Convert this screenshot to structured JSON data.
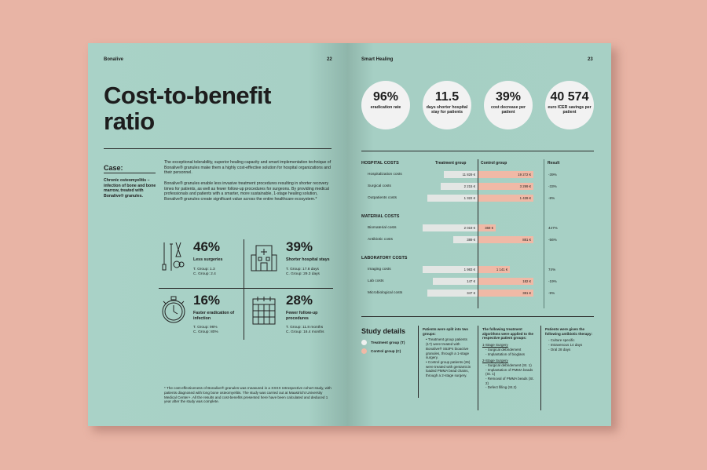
{
  "left_page": {
    "brand": "Bonalive",
    "page_num": "22",
    "title_line1": "Cost-to-benefit",
    "title_line2": "ratio",
    "case_label": "Case:",
    "side_text": "Chronic osteomyelitis – infection of bone and bone marrow, treated with Bonalive® granules.",
    "para1": "The exceptional tolerability, superior healing capacity and smart implementation technique of Bonalive® granules make them a highly cost-effective solution for hospital organizations and their personnel.",
    "para2": "Bonalive® granules enable less invasive treatment procedures resulting in shorter recovery times for patients, as well as fewer follow-up procedures for surgeons. By providing medical professionals and patients with a smarter, more sustainable, 1-stage healing solution, Bonalive® granules create significant value across the entire healthcare ecosystem.*",
    "stats": [
      {
        "icon": "surgical-tools-icon",
        "pct": "46%",
        "label": "Less surgeries",
        "t": "T. Group: 1.3",
        "c": "C. Group: 2.4"
      },
      {
        "icon": "hospital-icon",
        "pct": "39%",
        "label": "Shorter hospital stays",
        "t": "T. Group: 17.8 days",
        "c": "C. Group: 29.3 days"
      },
      {
        "icon": "stopwatch-icon",
        "pct": "16%",
        "label": "Faster eradication of infection",
        "t": "T. Group: 96%",
        "c": "C. Group: 80%"
      },
      {
        "icon": "calendar-icon",
        "pct": "28%",
        "label": "Fewer follow-up procedures",
        "t": "T. Group: 11.8 months",
        "c": "C. Group: 16.4 months"
      }
    ],
    "footnote": "*  The cost-effectiveness of Bonalive® granules was measured in a XXXX retrospective cohort study, with patients diagnosed with long bone osteomyelitis. The study was carried out at Maastricht University Medical Center+. All the results and cost-benefits presented here have been calculated and deduced 1 year after the study was complete."
  },
  "right_page": {
    "section": "Smart Healing",
    "page_num": "23",
    "kpis": [
      {
        "value": "96%",
        "label": "eradication rate"
      },
      {
        "value": "11.5",
        "label": "days shorter hospital stay for patients"
      },
      {
        "value": "39%",
        "label": "cost decrease per patient"
      },
      {
        "value": "40 574",
        "label": "euro ICER savings per patient"
      }
    ],
    "table_headers": {
      "treatment": "Treatment group",
      "control": "Control group",
      "result": "Result"
    },
    "groups": [
      {
        "name": "HOSPITAL COSTS",
        "rows": [
          {
            "label": "Hospitalization costs",
            "t": "11 829 €",
            "c": "19 272 €",
            "r": "-39%"
          },
          {
            "label": "Surgical costs",
            "t": "2 215 €",
            "c": "3 299 €",
            "r": "-33%"
          },
          {
            "label": "Outpatients costs",
            "t": "1 322 €",
            "c": "1 439 €",
            "r": "-8%"
          }
        ]
      },
      {
        "name": "MATERIAL COSTS",
        "rows": [
          {
            "label": "Biomaterial costs",
            "t": "2 019 €",
            "c": "369 €",
            "r": "447%"
          },
          {
            "label": "Antibiotic costs",
            "t": "389 €",
            "c": "881 €",
            "r": "-56%"
          }
        ]
      },
      {
        "name": "LABORATORY COSTS",
        "rows": [
          {
            "label": "Imaging costs",
            "t": "1 983 €",
            "c": "1 141 €",
            "r": "74%"
          },
          {
            "label": "Lab costs",
            "t": "147 €",
            "c": "182 €",
            "r": "-19%"
          },
          {
            "label": "Microbiological costs",
            "t": "347 €",
            "c": "381 €",
            "r": "-9%"
          }
        ]
      }
    ],
    "study": {
      "title": "Study details",
      "legend_t": "Treatment group (T)",
      "legend_c": "Control group (C)",
      "col1_head": "Patients were split into two groups:",
      "col1_items": [
        "Treatment group patients (17) were treated with Bonalive® S53P4 bioactive granules, through a 1-stage surgery.",
        "Control group patients (26) were treated with gentamicin loaded PMMA bead chains, through a 2-stage surgery."
      ],
      "col2_head": "The following treatment algorithms were applied to the respective patient groups:",
      "col2_sub1": "1-Stage Surgery",
      "col2_items1": [
        "Surgical debridement",
        "Implantation of bioglass"
      ],
      "col2_sub2": "2-Stage Surgery",
      "col2_items2": [
        "Surgical debridement (St. 1)",
        "Implantation of PMMA beads (St. 1)",
        "Removal of PMMA beads (St. 2)",
        "Defect filling (St.2)"
      ],
      "col3_head": "Patients were given the following antibiotic therapy:",
      "col3_items": [
        "Culture specific",
        "Intravenous 14 days",
        "Oral 28 days"
      ]
    }
  },
  "colors": {
    "page": "#a7d0c5",
    "background": "#e8b4a5",
    "control_bar": "#f0b9a6",
    "treatment_bar": "#e3e6e4"
  }
}
